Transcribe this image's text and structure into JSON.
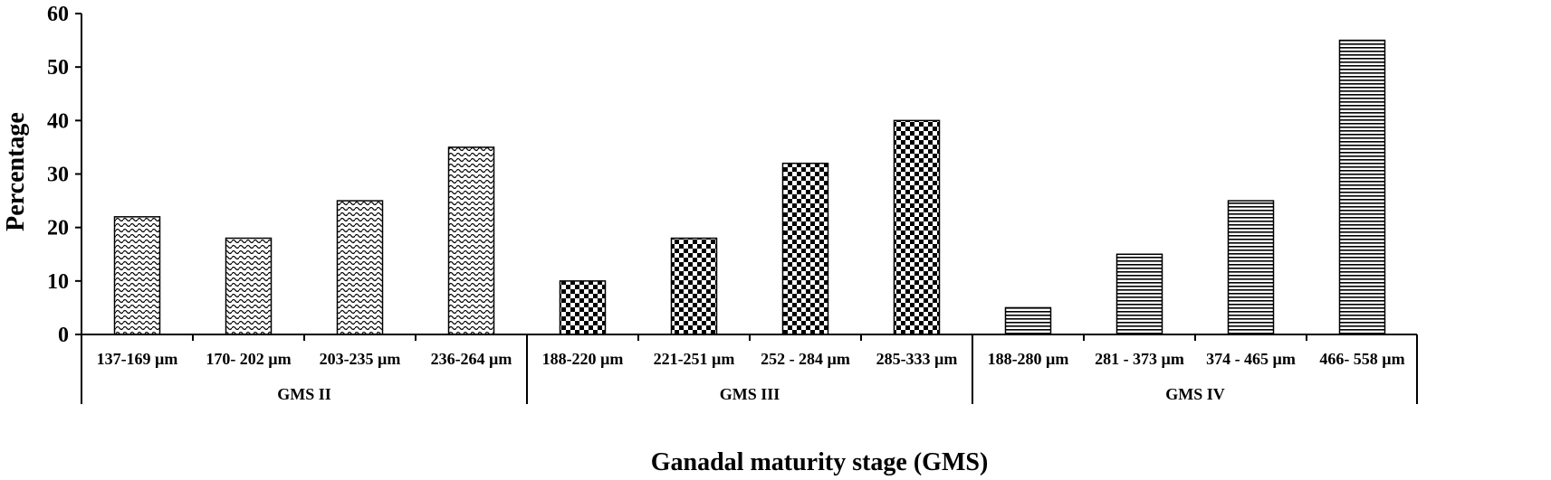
{
  "chart_data": {
    "type": "bar",
    "xlabel": "Ganadal maturity stage (GMS)",
    "ylabel": "Percentage",
    "ylim": [
      0,
      60
    ],
    "yticks": [
      0,
      10,
      20,
      30,
      40,
      50,
      60
    ],
    "grid": false,
    "legend": "none",
    "groups": [
      {
        "name": "GMS II",
        "pattern": "wave",
        "categories": [
          "137-169 µm",
          "170- 202 µm",
          "203-235 µm",
          "236-264 µm"
        ],
        "values": [
          22,
          18,
          25,
          35
        ]
      },
      {
        "name": "GMS III",
        "pattern": "checker",
        "categories": [
          "188-220 µm",
          "221-251 µm",
          "252 - 284 µm",
          "285-333 µm"
        ],
        "values": [
          10,
          18,
          32,
          40
        ]
      },
      {
        "name": "GMS IV",
        "pattern": "horizontal-lines",
        "categories": [
          "188-280 µm",
          "281 - 373 µm",
          "374 - 465 µm",
          "466- 558 µm"
        ],
        "values": [
          5,
          15,
          25,
          55
        ]
      }
    ],
    "colors": {
      "bar_fill": "#ffffff",
      "bar_stroke": "#000000",
      "pattern": "#000000"
    }
  }
}
